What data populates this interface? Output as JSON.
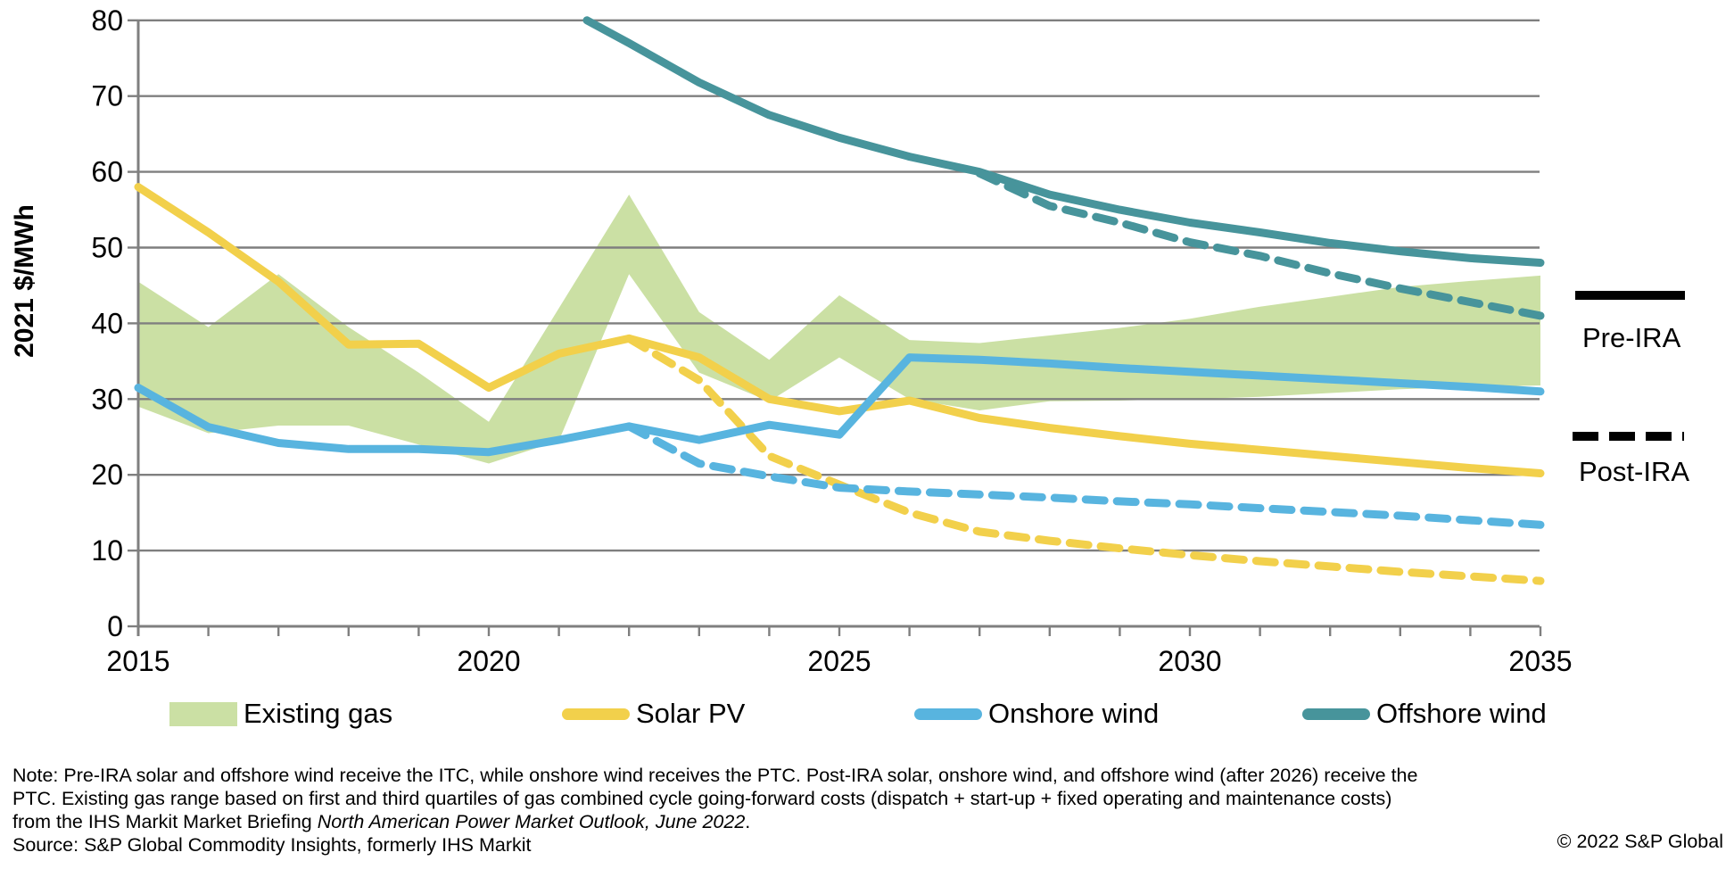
{
  "chart_data": {
    "type": "line",
    "title": "",
    "ylabel": "2021 $/MWh",
    "xlabel": "",
    "xlim": [
      2015,
      2035
    ],
    "ylim": [
      0,
      80
    ],
    "yticks": [
      0,
      10,
      20,
      30,
      40,
      50,
      60,
      70,
      80
    ],
    "xticks": [
      2015,
      2020,
      2025,
      2030,
      2035
    ],
    "grid": "horizontal",
    "legend_position": "bottom",
    "x": [
      2015,
      2016,
      2017,
      2018,
      2019,
      2020,
      2021,
      2022,
      2023,
      2024,
      2025,
      2026,
      2027,
      2028,
      2029,
      2030,
      2031,
      2032,
      2033,
      2034,
      2035
    ],
    "series": [
      {
        "name": "Existing gas",
        "type": "band",
        "color": "#cbe0a4",
        "x": [
          2015,
          2016,
          2017,
          2018,
          2019,
          2020,
          2021,
          2022,
          2023,
          2024,
          2025,
          2026,
          2027,
          2028,
          2029,
          2030,
          2031,
          2032,
          2033,
          2034,
          2035
        ],
        "low": [
          29,
          25.5,
          26.5,
          26.5,
          24,
          21.5,
          24.5,
          46.5,
          33.5,
          29.7,
          35.5,
          30,
          28.5,
          29.7,
          29.8,
          30,
          30.3,
          30.8,
          31.3,
          31.6,
          31.8
        ],
        "high": [
          45.5,
          39.5,
          46.5,
          39.5,
          33.5,
          27,
          42,
          57,
          41.5,
          35.2,
          43.7,
          37.8,
          37.4,
          38.4,
          39.4,
          40.6,
          42.2,
          43.5,
          44.8,
          45.6,
          46.3
        ]
      },
      {
        "name": "Solar PV (Pre-IRA)",
        "type": "line",
        "style": "solid",
        "color": "#f2d04b",
        "x": [
          2015,
          2016,
          2017,
          2018,
          2019,
          2020,
          2021,
          2022,
          2023,
          2024,
          2025,
          2026,
          2027,
          2028,
          2029,
          2030,
          2031,
          2032,
          2033,
          2034,
          2035
        ],
        "values": [
          58,
          52,
          45.5,
          37.2,
          37.3,
          31.5,
          36,
          38,
          35.5,
          30,
          28.4,
          29.8,
          27.5,
          26.2,
          25.1,
          24.1,
          23.3,
          22.5,
          21.7,
          20.9,
          20.2
        ]
      },
      {
        "name": "Solar PV (Post-IRA)",
        "type": "line",
        "style": "dashed",
        "color": "#f2d04b",
        "x": [
          2022,
          2023,
          2024,
          2025,
          2026,
          2027,
          2028,
          2029,
          2030,
          2031,
          2032,
          2033,
          2034,
          2035
        ],
        "values": [
          38,
          32.5,
          22.5,
          18.7,
          15,
          12.5,
          11.3,
          10.3,
          9.4,
          8.6,
          7.9,
          7.2,
          6.6,
          6
        ]
      },
      {
        "name": "Onshore wind (Pre-IRA)",
        "type": "line",
        "style": "solid",
        "color": "#58b4df",
        "x": [
          2015,
          2016,
          2017,
          2018,
          2019,
          2020,
          2021,
          2022,
          2023,
          2024,
          2025,
          2026,
          2027,
          2028,
          2029,
          2030,
          2031,
          2032,
          2033,
          2034,
          2035
        ],
        "values": [
          31.5,
          26.3,
          24.2,
          23.4,
          23.4,
          23,
          24.6,
          26.4,
          24.6,
          26.6,
          25.3,
          35.5,
          35.2,
          34.7,
          34.1,
          33.6,
          33.1,
          32.6,
          32.1,
          31.6,
          31
        ]
      },
      {
        "name": "Onshore wind (Post-IRA)",
        "type": "line",
        "style": "dashed",
        "color": "#58b4df",
        "x": [
          2022,
          2023,
          2024,
          2025,
          2026,
          2027,
          2028,
          2029,
          2030,
          2031,
          2032,
          2033,
          2034,
          2035
        ],
        "values": [
          26.4,
          21.5,
          19.8,
          18.3,
          17.8,
          17.4,
          17,
          16.5,
          16.1,
          15.6,
          15.1,
          14.6,
          14,
          13.4
        ]
      },
      {
        "name": "Offshore wind (Pre-IRA)",
        "type": "line",
        "style": "solid",
        "color": "#47949b",
        "x": [
          2021.4,
          2022,
          2023,
          2024,
          2025,
          2026,
          2027,
          2028,
          2029,
          2030,
          2031,
          2032,
          2033,
          2034,
          2035
        ],
        "values": [
          80,
          77,
          71.8,
          67.5,
          64.5,
          62,
          60,
          57,
          55,
          53.3,
          52,
          50.6,
          49.5,
          48.6,
          48
        ]
      },
      {
        "name": "Offshore wind (Post-IRA)",
        "type": "line",
        "style": "dashed",
        "color": "#47949b",
        "x": [
          2027,
          2028,
          2029,
          2030,
          2031,
          2032,
          2033,
          2034,
          2035
        ],
        "values": [
          59.8,
          55.5,
          53.3,
          50.7,
          48.9,
          46.6,
          44.6,
          42.8,
          41
        ]
      }
    ],
    "legend": [
      {
        "label": "Existing gas",
        "color": "#cbe0a4",
        "swatch": "rect"
      },
      {
        "label": "Solar PV",
        "color": "#f2d04b",
        "swatch": "line"
      },
      {
        "label": "Onshore wind",
        "color": "#58b4df",
        "swatch": "line"
      },
      {
        "label": "Offshore wind",
        "color": "#47949b",
        "swatch": "line"
      }
    ],
    "annotations": [
      {
        "label": "Pre-IRA",
        "style": "solid"
      },
      {
        "label": "Post-IRA",
        "style": "dashed"
      }
    ],
    "colors": {
      "gridline": "#7f7f7f",
      "axis": "#7f7f7f",
      "text": "#000000",
      "background": "#ffffff"
    }
  },
  "note": {
    "line1": "Note: Pre-IRA solar and offshore wind receive the ITC, while onshore wind receives the PTC. Post-IRA solar, onshore wind, and offshore wind (after 2026) receive the",
    "line2": "PTC. Existing gas range based on first and third quartiles of gas combined cycle going-forward costs (dispatch + start-up + fixed operating and maintenance costs)",
    "line3_prefix": "from the IHS Markit Market Briefing ",
    "line3_italic": "North American Power Market Outlook, June 2022",
    "line3_suffix": ".",
    "source": "Source: S&P Global Commodity Insights, formerly IHS Markit",
    "copyright": "© 2022 S&P Global"
  }
}
